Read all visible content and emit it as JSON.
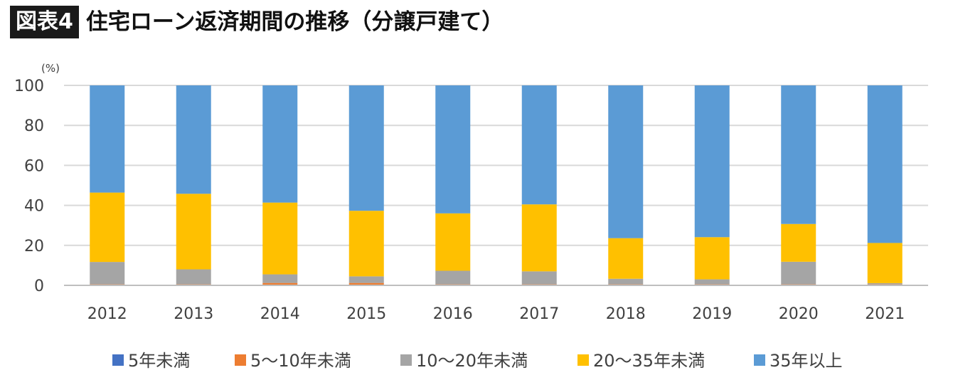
{
  "header": {
    "badge": "図表4",
    "title": "住宅ローン返済期間の推移（分譲戸建て）"
  },
  "chart_data": {
    "type": "bar",
    "stacked": true,
    "unit_label": "(%)",
    "ylim": [
      0,
      100
    ],
    "yticks": [
      0,
      20,
      40,
      60,
      80,
      100
    ],
    "grid": true,
    "legend_position": "bottom",
    "categories": [
      "2012",
      "2013",
      "2014",
      "2015",
      "2016",
      "2017",
      "2018",
      "2019",
      "2020",
      "2021"
    ],
    "series": [
      {
        "name": "5年未満",
        "color": "#4472C4",
        "values": [
          0.2,
          0.2,
          0.2,
          0.2,
          0.2,
          0.2,
          0.2,
          0.2,
          0.2,
          0.2
        ]
      },
      {
        "name": "5～10年未満",
        "color": "#ED7D31",
        "values": [
          0.3,
          0.3,
          1.0,
          1.0,
          0.3,
          0.3,
          0.3,
          0.3,
          0.3,
          0.3
        ]
      },
      {
        "name": "10～20年未満",
        "color": "#A5A5A5",
        "values": [
          11.2,
          7.5,
          4.3,
          3.3,
          6.8,
          6.5,
          2.8,
          2.5,
          11.3,
          0.6
        ]
      },
      {
        "name": "20～35年未満",
        "color": "#FFC000",
        "values": [
          34.7,
          37.8,
          35.9,
          32.8,
          28.7,
          33.5,
          20.3,
          21.1,
          18.9,
          20.1
        ]
      },
      {
        "name": "35年以上",
        "color": "#5B9BD5",
        "values": [
          53.6,
          54.2,
          58.6,
          62.7,
          64.0,
          59.5,
          76.4,
          75.9,
          69.3,
          78.8
        ]
      }
    ]
  }
}
